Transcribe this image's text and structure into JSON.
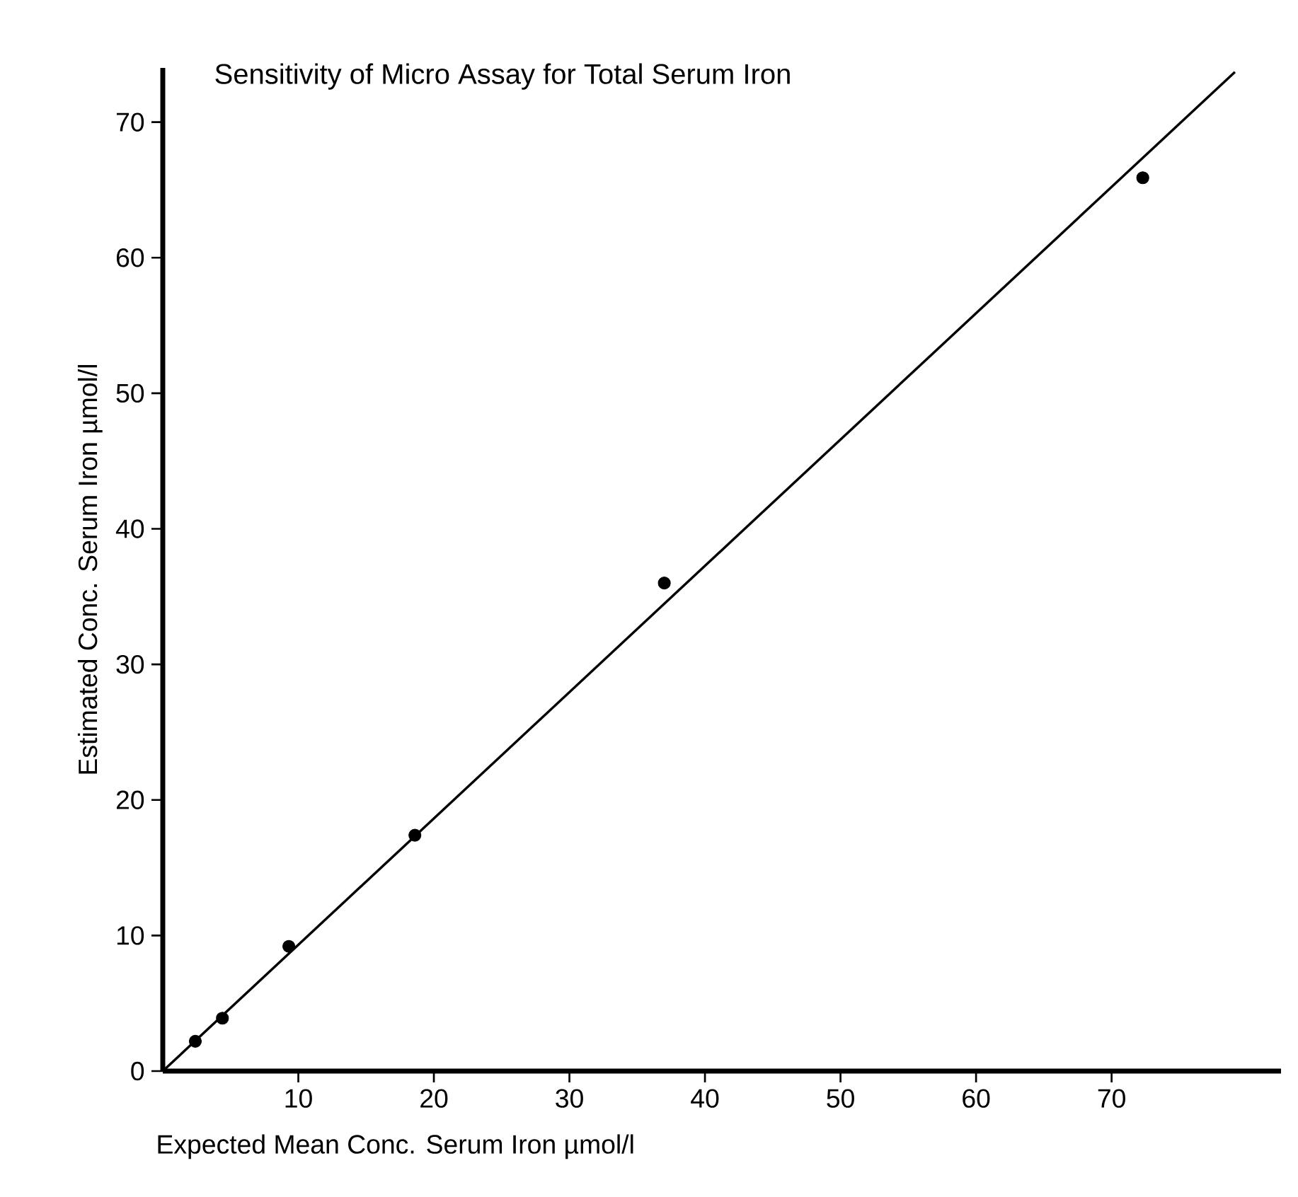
{
  "chart_data": {
    "type": "scatter",
    "title": "Sensitivity of Micro Assay for Total Serum Iron",
    "xlabel": "Expected Mean Conc. Serum Iron µmol/l",
    "ylabel": "Estimated Conc. Serum Iron µmol/l",
    "xlim": [
      0,
      82.5
    ],
    "ylim": [
      0,
      74
    ],
    "xticks": [
      10,
      20,
      30,
      40,
      50,
      60,
      70
    ],
    "yticks": [
      0,
      10,
      20,
      30,
      40,
      50,
      60,
      70
    ],
    "marker": "circle",
    "series": [
      {
        "color": "#000000",
        "x": [
          2.4,
          4.4,
          9.3,
          18.6,
          37.0,
          72.3
        ],
        "values": [
          2.2,
          3.9,
          9.2,
          17.4,
          36.0,
          65.9
        ]
      },
      {
        "type": "line",
        "color": "#000000",
        "marker": "none",
        "line_style": "solid",
        "x": [
          0,
          79.1
        ],
        "values": [
          0,
          73.7
        ]
      }
    ]
  }
}
